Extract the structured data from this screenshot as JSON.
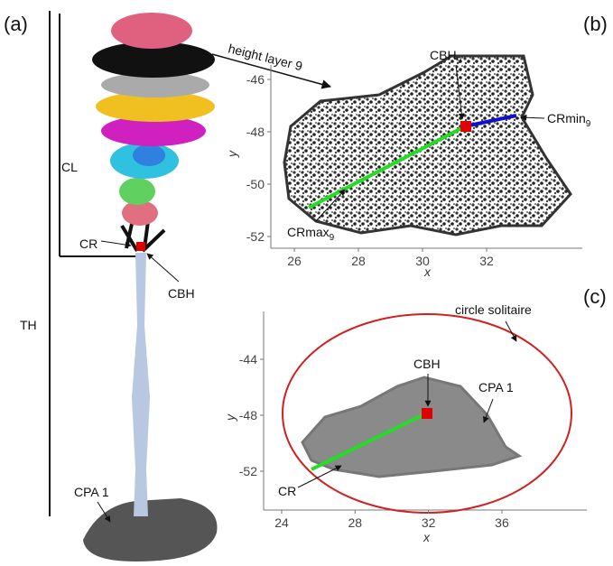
{
  "panel_a": {
    "label": "(a)",
    "th": "TH",
    "cl": "CL",
    "cr": "CR",
    "cbh": "CBH",
    "cpa": "CPA 1"
  },
  "panel_b": {
    "label": "(b)",
    "layer": "height layer 9",
    "cbh": "CBH",
    "cbh_sub": "9",
    "crmin": "CRmin",
    "crmin_sub": "9",
    "crmax": "CRmax",
    "crmax_sub": "9",
    "x_label": "x",
    "y_label": "y",
    "xticks": [
      26,
      28,
      30,
      32
    ],
    "yticks": [
      -46,
      -48,
      -50,
      -52
    ]
  },
  "panel_c": {
    "label": "(c)",
    "circle": "circle solitaire",
    "cbh": "CBH",
    "cpa": "CPA 1",
    "cr": "CR",
    "x_label": "x",
    "y_label": "y",
    "xticks": [
      24,
      28,
      32,
      36
    ],
    "yticks": [
      -44,
      -48,
      -52
    ]
  }
}
